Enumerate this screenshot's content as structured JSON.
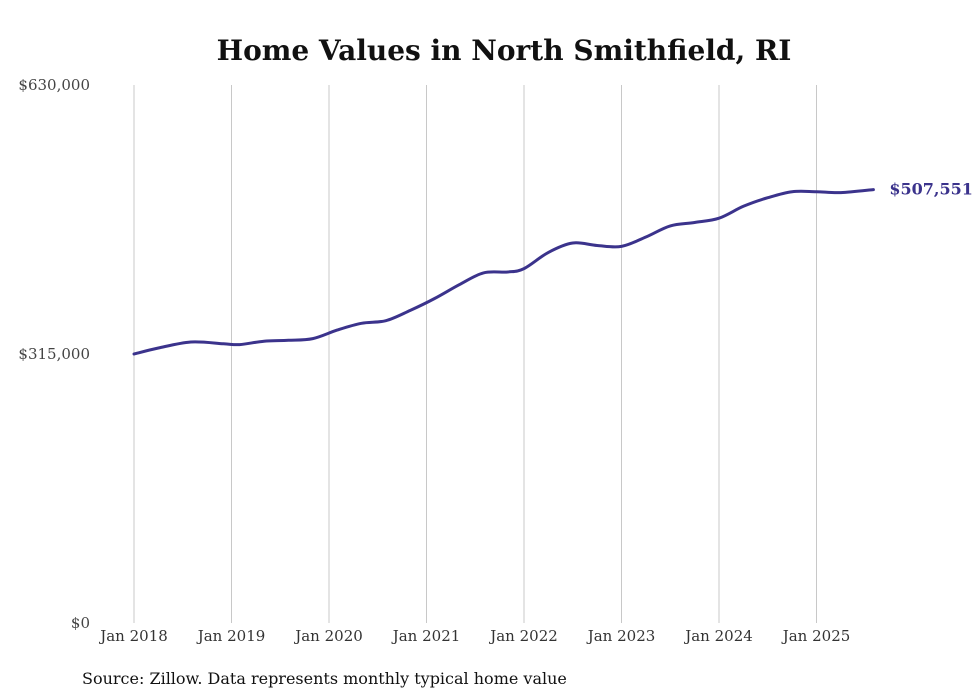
{
  "chart_data": {
    "type": "line",
    "title": "Home Values in North Smithfield, RI",
    "xlabel": "",
    "ylabel": "",
    "ylim": [
      0,
      630000
    ],
    "y_ticks": [
      "$0",
      "$315,000",
      "$630,000"
    ],
    "x_ticks": [
      "Jan 2018",
      "Jan 2019",
      "Jan 2020",
      "Jan 2021",
      "Jan 2022",
      "Jan 2023",
      "Jan 2024",
      "Jan 2025"
    ],
    "grid": "vertical",
    "color": "#3b338c",
    "end_label": "$507,551",
    "series": [
      {
        "values": [
          {
            "x": "2018-01",
            "y": 315000
          },
          {
            "x": "2018-04",
            "y": 322000
          },
          {
            "x": "2018-08",
            "y": 329000
          },
          {
            "x": "2018-12",
            "y": 327000
          },
          {
            "x": "2019-02",
            "y": 326000
          },
          {
            "x": "2019-05",
            "y": 330000
          },
          {
            "x": "2019-08",
            "y": 331000
          },
          {
            "x": "2019-11",
            "y": 333000
          },
          {
            "x": "2020-02",
            "y": 343000
          },
          {
            "x": "2020-05",
            "y": 351000
          },
          {
            "x": "2020-08",
            "y": 354000
          },
          {
            "x": "2020-11",
            "y": 366000
          },
          {
            "x": "2021-02",
            "y": 380000
          },
          {
            "x": "2021-05",
            "y": 396000
          },
          {
            "x": "2021-08",
            "y": 410000
          },
          {
            "x": "2021-11",
            "y": 411000
          },
          {
            "x": "2022-01",
            "y": 415000
          },
          {
            "x": "2022-04",
            "y": 434000
          },
          {
            "x": "2022-07",
            "y": 445000
          },
          {
            "x": "2022-10",
            "y": 442000
          },
          {
            "x": "2023-01",
            "y": 441000
          },
          {
            "x": "2023-04",
            "y": 452000
          },
          {
            "x": "2023-07",
            "y": 465000
          },
          {
            "x": "2023-10",
            "y": 469000
          },
          {
            "x": "2024-01",
            "y": 474000
          },
          {
            "x": "2024-04",
            "y": 488000
          },
          {
            "x": "2024-07",
            "y": 498000
          },
          {
            "x": "2024-10",
            "y": 505000
          },
          {
            "x": "2025-01",
            "y": 505000
          },
          {
            "x": "2025-04",
            "y": 504000
          },
          {
            "x": "2025-08",
            "y": 507551
          }
        ]
      }
    ]
  },
  "source_note": "Source: Zillow. Data represents monthly typical home value"
}
